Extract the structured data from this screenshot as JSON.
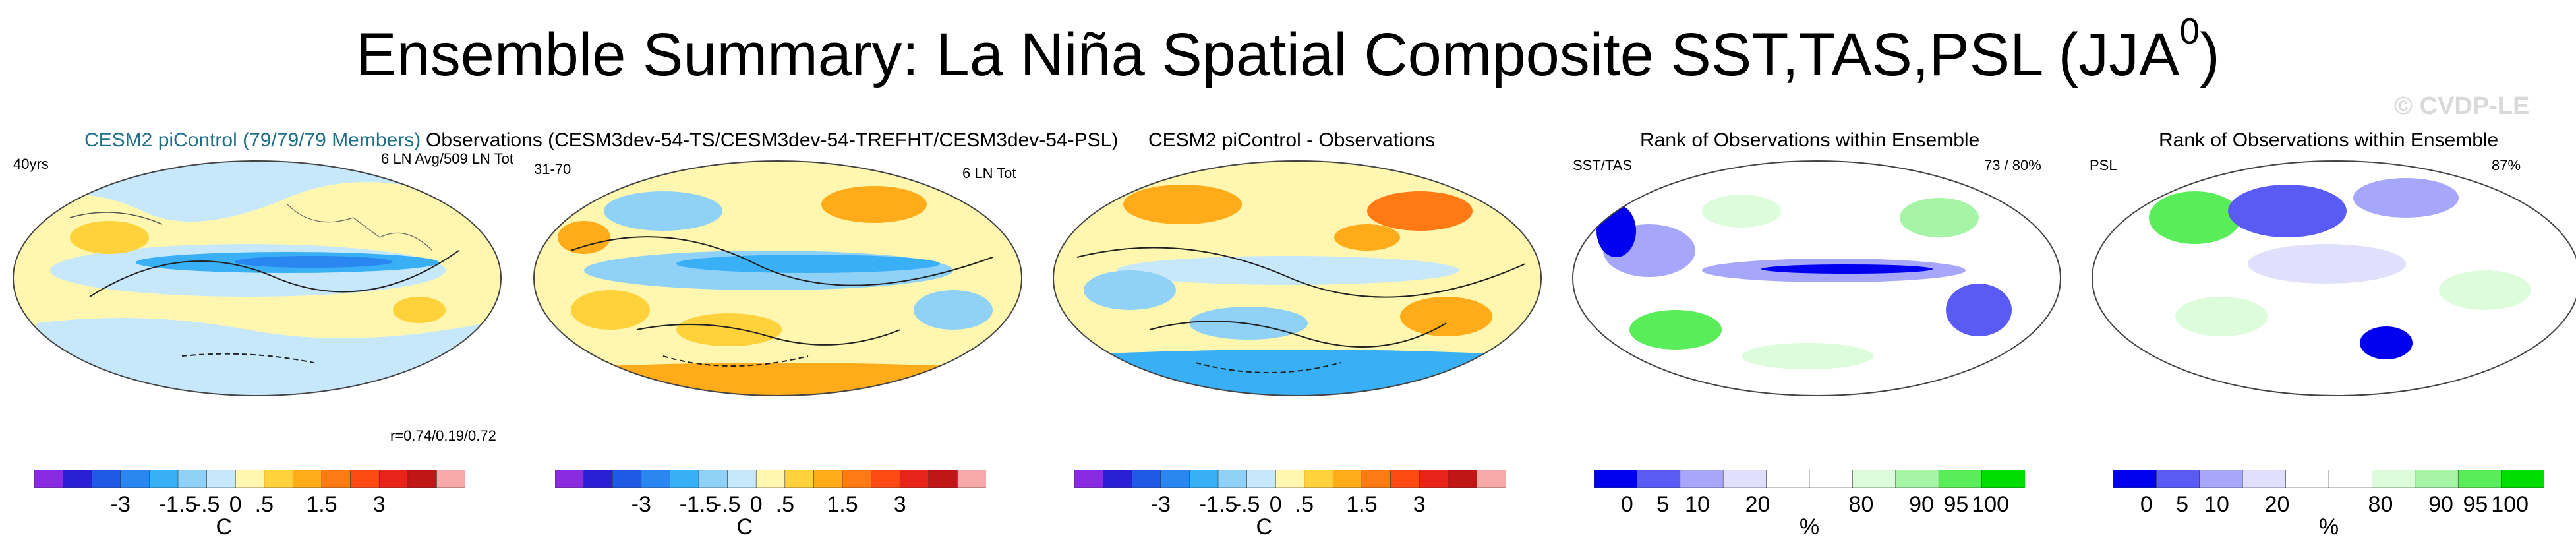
{
  "title": {
    "text": "Ensemble Summary: La Niña Spatial Composite SST,TAS,PSL (JJA",
    "superscript": "0",
    "suffix": ")"
  },
  "copyright": "© CVDP-LE",
  "panels": [
    {
      "title": "CESM2 piControl (79/79/79 Members)",
      "top_left": "40yrs",
      "top_right": "6 LN Avg/509 LN Tot",
      "bottom_right": "r=0.74/0.19/0.72"
    },
    {
      "title": "Observations (CESM3dev-54-TS/CESM3dev-54-TREFHT/CESM3dev-54-PSL)",
      "top_left": "31-70",
      "top_right": "6 LN Tot"
    },
    {
      "title": "CESM2 piControl - Observations"
    },
    {
      "title": "Rank of Observations within Ensemble",
      "top_left": "SST/TAS",
      "top_right": "73 /  80%"
    },
    {
      "title": "Rank of Observations within Ensemble",
      "top_left": "PSL",
      "top_right": "87%"
    }
  ],
  "colorbar_temp": {
    "colors": [
      "#8a2be2",
      "#2a1fd6",
      "#1e5ae6",
      "#2a86f0",
      "#39b0f5",
      "#8fd1f7",
      "#c7e8fb",
      "#fff7b0",
      "#ffd23c",
      "#ffab1a",
      "#ff7a14",
      "#ff4a14",
      "#e8241a",
      "#c01616",
      "#f7a8a8"
    ],
    "ticks": [
      "-3",
      "-1.5",
      "-.5",
      "0",
      ".5",
      "1.5",
      "3"
    ],
    "unit": "C"
  },
  "colorbar_rank": {
    "colors": [
      "#0000ee",
      "#5a5af5",
      "#a6a6fa",
      "#e0e0fc",
      "#ffffff",
      "#ffffff",
      "#dcfcdc",
      "#a6f5a6",
      "#5aed5a",
      "#00dd00"
    ],
    "ticks": [
      "0",
      "5",
      "10",
      "20",
      "80",
      "90",
      "95",
      "100"
    ],
    "unit": "%"
  }
}
